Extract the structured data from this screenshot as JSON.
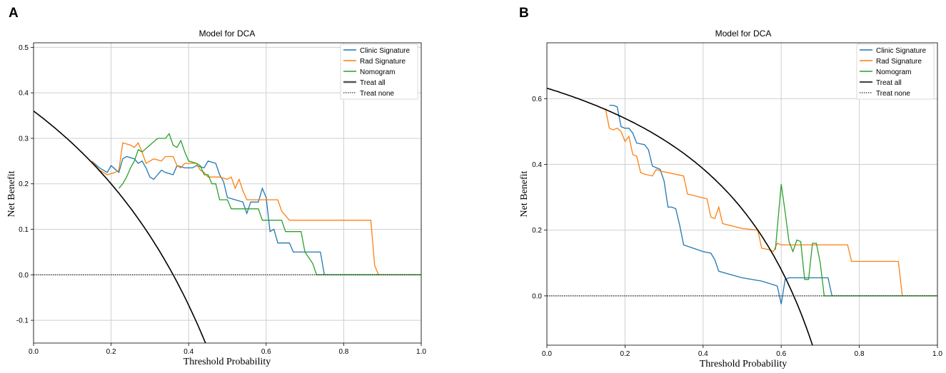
{
  "colors": {
    "clinic": "#1f77b4",
    "rad": "#ff7f0e",
    "nomogram": "#2ca02c",
    "treat_all": "#000000",
    "treat_none": "#000000"
  },
  "chart_data": [
    {
      "panel": "A",
      "type": "line",
      "title": "Model for DCA",
      "xlabel": "Threshold Probability",
      "ylabel": "Net Benefit",
      "xlim": [
        0,
        1
      ],
      "ylim": [
        -0.15,
        0.51
      ],
      "xticks": [
        "0.0",
        "0.2",
        "0.4",
        "0.6",
        "0.8",
        "1.0"
      ],
      "yticks": [
        "0.5",
        "0.4",
        "0.3",
        "0.2",
        "0.1",
        "0.0",
        "-0.1"
      ],
      "legend_position": "top-right",
      "legend": [
        "Clinic Signature",
        "Rad Signature",
        "Nomogram",
        "Treat all",
        "Treat none"
      ],
      "series": [
        {
          "name": "Clinic Signature",
          "color_key": "clinic",
          "points": [
            [
              0.15,
              0.25
            ],
            [
              0.17,
              0.235
            ],
            [
              0.19,
              0.225
            ],
            [
              0.2,
              0.24
            ],
            [
              0.22,
              0.225
            ],
            [
              0.23,
              0.255
            ],
            [
              0.24,
              0.26
            ],
            [
              0.26,
              0.255
            ],
            [
              0.27,
              0.245
            ],
            [
              0.28,
              0.25
            ],
            [
              0.29,
              0.235
            ],
            [
              0.3,
              0.215
            ],
            [
              0.31,
              0.21
            ],
            [
              0.32,
              0.22
            ],
            [
              0.33,
              0.23
            ],
            [
              0.34,
              0.225
            ],
            [
              0.36,
              0.22
            ],
            [
              0.37,
              0.24
            ],
            [
              0.39,
              0.235
            ],
            [
              0.41,
              0.235
            ],
            [
              0.42,
              0.24
            ],
            [
              0.44,
              0.235
            ],
            [
              0.45,
              0.25
            ],
            [
              0.47,
              0.245
            ],
            [
              0.48,
              0.22
            ],
            [
              0.49,
              0.205
            ],
            [
              0.5,
              0.17
            ],
            [
              0.52,
              0.165
            ],
            [
              0.54,
              0.16
            ],
            [
              0.55,
              0.135
            ],
            [
              0.56,
              0.16
            ],
            [
              0.58,
              0.16
            ],
            [
              0.59,
              0.19
            ],
            [
              0.6,
              0.17
            ],
            [
              0.61,
              0.095
            ],
            [
              0.62,
              0.1
            ],
            [
              0.63,
              0.07
            ],
            [
              0.66,
              0.07
            ],
            [
              0.67,
              0.05
            ],
            [
              0.7,
              0.05
            ],
            [
              0.71,
              0.05
            ],
            [
              0.72,
              0.05
            ],
            [
              0.74,
              0.05
            ],
            [
              0.75,
              0.0
            ],
            [
              1.0,
              0.0
            ]
          ]
        },
        {
          "name": "Rad Signature",
          "color_key": "rad",
          "points": [
            [
              0.15,
              0.25
            ],
            [
              0.17,
              0.23
            ],
            [
              0.18,
              0.225
            ],
            [
              0.19,
              0.22
            ],
            [
              0.21,
              0.225
            ],
            [
              0.22,
              0.23
            ],
            [
              0.23,
              0.29
            ],
            [
              0.25,
              0.285
            ],
            [
              0.26,
              0.28
            ],
            [
              0.27,
              0.29
            ],
            [
              0.28,
              0.27
            ],
            [
              0.29,
              0.245
            ],
            [
              0.31,
              0.255
            ],
            [
              0.33,
              0.25
            ],
            [
              0.34,
              0.26
            ],
            [
              0.36,
              0.26
            ],
            [
              0.37,
              0.24
            ],
            [
              0.38,
              0.235
            ],
            [
              0.39,
              0.245
            ],
            [
              0.42,
              0.245
            ],
            [
              0.43,
              0.23
            ],
            [
              0.44,
              0.225
            ],
            [
              0.45,
              0.215
            ],
            [
              0.48,
              0.215
            ],
            [
              0.5,
              0.21
            ],
            [
              0.51,
              0.215
            ],
            [
              0.52,
              0.19
            ],
            [
              0.53,
              0.21
            ],
            [
              0.54,
              0.185
            ],
            [
              0.55,
              0.165
            ],
            [
              0.6,
              0.165
            ],
            [
              0.63,
              0.165
            ],
            [
              0.64,
              0.14
            ],
            [
              0.66,
              0.12
            ],
            [
              0.7,
              0.12
            ],
            [
              0.87,
              0.12
            ],
            [
              0.88,
              0.02
            ],
            [
              0.89,
              0.0
            ],
            [
              1.0,
              0.0
            ]
          ]
        },
        {
          "name": "Nomogram",
          "color_key": "nomogram",
          "points": [
            [
              0.22,
              0.19
            ],
            [
              0.23,
              0.2
            ],
            [
              0.24,
              0.215
            ],
            [
              0.25,
              0.235
            ],
            [
              0.26,
              0.25
            ],
            [
              0.27,
              0.275
            ],
            [
              0.28,
              0.27
            ],
            [
              0.3,
              0.285
            ],
            [
              0.32,
              0.3
            ],
            [
              0.34,
              0.3
            ],
            [
              0.35,
              0.31
            ],
            [
              0.36,
              0.285
            ],
            [
              0.37,
              0.28
            ],
            [
              0.38,
              0.295
            ],
            [
              0.39,
              0.27
            ],
            [
              0.4,
              0.25
            ],
            [
              0.42,
              0.245
            ],
            [
              0.43,
              0.24
            ],
            [
              0.44,
              0.22
            ],
            [
              0.45,
              0.22
            ],
            [
              0.46,
              0.2
            ],
            [
              0.47,
              0.2
            ],
            [
              0.48,
              0.165
            ],
            [
              0.5,
              0.165
            ],
            [
              0.51,
              0.145
            ],
            [
              0.55,
              0.145
            ],
            [
              0.58,
              0.145
            ],
            [
              0.59,
              0.12
            ],
            [
              0.64,
              0.12
            ],
            [
              0.65,
              0.095
            ],
            [
              0.69,
              0.095
            ],
            [
              0.7,
              0.05
            ],
            [
              0.72,
              0.025
            ],
            [
              0.73,
              0.0
            ],
            [
              1.0,
              0.0
            ]
          ]
        },
        {
          "name": "Treat all",
          "color_key": "treat_all",
          "prevalence": 0.36,
          "x_range": [
            0.0,
            0.45
          ]
        },
        {
          "name": "Treat none",
          "color_key": "treat_none",
          "points": [
            [
              0.0,
              0.0
            ],
            [
              1.0,
              0.0
            ]
          ]
        }
      ]
    },
    {
      "panel": "B",
      "type": "line",
      "title": "Model for DCA",
      "xlabel": "Threshold Probability",
      "ylabel": "Net Benefit",
      "xlim": [
        0,
        1
      ],
      "ylim": [
        -0.15,
        0.77
      ],
      "xticks": [
        "0.0",
        "0.2",
        "0.4",
        "0.6",
        "0.8",
        "1.0"
      ],
      "yticks": [
        "0.6",
        "0.4",
        "0.2",
        "0.0"
      ],
      "legend_position": "top-right",
      "legend": [
        "Clinic Signature",
        "Rad Signature",
        "Nomogram",
        "Treat all",
        "Treat none"
      ],
      "series": [
        {
          "name": "Clinic Signature",
          "color_key": "clinic",
          "points": [
            [
              0.16,
              0.58
            ],
            [
              0.17,
              0.58
            ],
            [
              0.18,
              0.575
            ],
            [
              0.19,
              0.515
            ],
            [
              0.2,
              0.51
            ],
            [
              0.21,
              0.51
            ],
            [
              0.22,
              0.495
            ],
            [
              0.23,
              0.465
            ],
            [
              0.25,
              0.46
            ],
            [
              0.26,
              0.445
            ],
            [
              0.27,
              0.395
            ],
            [
              0.28,
              0.39
            ],
            [
              0.29,
              0.385
            ],
            [
              0.3,
              0.35
            ],
            [
              0.31,
              0.27
            ],
            [
              0.32,
              0.27
            ],
            [
              0.33,
              0.265
            ],
            [
              0.34,
              0.215
            ],
            [
              0.35,
              0.155
            ],
            [
              0.4,
              0.135
            ],
            [
              0.42,
              0.13
            ],
            [
              0.43,
              0.11
            ],
            [
              0.44,
              0.075
            ],
            [
              0.5,
              0.055
            ],
            [
              0.55,
              0.045
            ],
            [
              0.59,
              0.03
            ],
            [
              0.6,
              -0.025
            ],
            [
              0.61,
              0.05
            ],
            [
              0.62,
              0.055
            ],
            [
              0.7,
              0.055
            ],
            [
              0.72,
              0.055
            ],
            [
              0.73,
              0.0
            ],
            [
              1.0,
              0.0
            ]
          ]
        },
        {
          "name": "Rad Signature",
          "color_key": "rad",
          "points": [
            [
              0.15,
              0.57
            ],
            [
              0.16,
              0.51
            ],
            [
              0.17,
              0.505
            ],
            [
              0.18,
              0.51
            ],
            [
              0.19,
              0.5
            ],
            [
              0.2,
              0.47
            ],
            [
              0.21,
              0.485
            ],
            [
              0.22,
              0.43
            ],
            [
              0.23,
              0.425
            ],
            [
              0.24,
              0.375
            ],
            [
              0.25,
              0.37
            ],
            [
              0.27,
              0.365
            ],
            [
              0.28,
              0.385
            ],
            [
              0.29,
              0.38
            ],
            [
              0.35,
              0.365
            ],
            [
              0.36,
              0.31
            ],
            [
              0.41,
              0.295
            ],
            [
              0.42,
              0.24
            ],
            [
              0.43,
              0.235
            ],
            [
              0.44,
              0.27
            ],
            [
              0.45,
              0.22
            ],
            [
              0.5,
              0.205
            ],
            [
              0.54,
              0.2
            ],
            [
              0.55,
              0.145
            ],
            [
              0.57,
              0.14
            ],
            [
              0.58,
              0.135
            ],
            [
              0.59,
              0.16
            ],
            [
              0.6,
              0.155
            ],
            [
              0.65,
              0.155
            ],
            [
              0.77,
              0.155
            ],
            [
              0.78,
              0.105
            ],
            [
              0.9,
              0.105
            ],
            [
              0.91,
              0.0
            ],
            [
              1.0,
              0.0
            ]
          ]
        },
        {
          "name": "Nomogram",
          "color_key": "nomogram",
          "points": [
            [
              0.585,
              0.14
            ],
            [
              0.6,
              0.34
            ],
            [
              0.61,
              0.255
            ],
            [
              0.62,
              0.165
            ],
            [
              0.63,
              0.135
            ],
            [
              0.64,
              0.17
            ],
            [
              0.65,
              0.165
            ],
            [
              0.66,
              0.05
            ],
            [
              0.67,
              0.05
            ],
            [
              0.68,
              0.16
            ],
            [
              0.69,
              0.16
            ],
            [
              0.7,
              0.1
            ],
            [
              0.71,
              0.0
            ],
            [
              1.0,
              0.0
            ]
          ]
        },
        {
          "name": "Treat all",
          "color_key": "treat_all",
          "prevalence": 0.632,
          "x_range": [
            0.0,
            0.68
          ]
        },
        {
          "name": "Treat none",
          "color_key": "treat_none",
          "points": [
            [
              0.0,
              0.0
            ],
            [
              1.0,
              0.0
            ]
          ]
        }
      ]
    }
  ]
}
